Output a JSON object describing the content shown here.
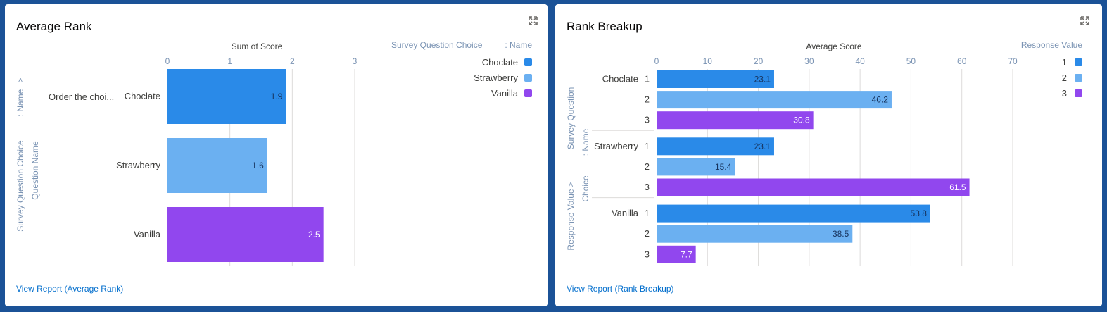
{
  "colors": {
    "series1": "#2a8ae8",
    "series2": "#6bb0f1",
    "series3": "#9147ee",
    "axis_text": "#7a93b3",
    "label_text": "#3e3e3c",
    "grid": "#dddbda",
    "link": "#006dcc"
  },
  "card1": {
    "title": "Average Rank",
    "expand_icon": "expand-icon",
    "link": "View Report (Average Rank)"
  },
  "card2": {
    "title": "Rank Breakup",
    "expand_icon": "expand-icon",
    "link": "View Report (Rank Breakup)"
  },
  "chart_data": [
    {
      "type": "bar",
      "orientation": "horizontal",
      "title": "Sum of Score",
      "xlabel": "Sum of Score",
      "ylabel_outer": "Survey Question Choice",
      "ylabel_outer_suffix": ": Name",
      "ylabel_outer_arrow": ">",
      "ylabel_inner": "Question Name",
      "group_label": "Order the choi...",
      "xlim": [
        0,
        3
      ],
      "xticks": [
        "0",
        "1",
        "2",
        "3"
      ],
      "categories": [
        "Choclate",
        "Strawberry",
        "Vanilla"
      ],
      "values": [
        1.9,
        1.6,
        2.5
      ],
      "value_labels": [
        "1.9",
        "1.6",
        "2.5"
      ],
      "legend": {
        "title": "Survey Question Choice",
        "title_suffix": ": Name",
        "position": "top-right",
        "entries": [
          "Choclate",
          "Strawberry",
          "Vanilla"
        ]
      },
      "grid": true
    },
    {
      "type": "bar",
      "orientation": "horizontal",
      "title": "Average Score",
      "xlabel": "Average Score",
      "ylabel_outer": "Response Value",
      "ylabel_outer_arrow": ">",
      "ylabel_outer_suffix": "Survey Question",
      "ylabel_inner": "Choice",
      "ylabel_inner_suffix": ": Name",
      "xlim": [
        0,
        70
      ],
      "xticks": [
        "0",
        "10",
        "20",
        "30",
        "40",
        "50",
        "60",
        "70"
      ],
      "groups": [
        "Choclate",
        "Strawberry",
        "Vanilla"
      ],
      "sub_categories": [
        "1",
        "2",
        "3"
      ],
      "series": [
        {
          "group": "Choclate",
          "values": [
            23.1,
            46.2,
            30.8
          ],
          "value_labels": [
            "23.1",
            "46.2",
            "30.8"
          ]
        },
        {
          "group": "Strawberry",
          "values": [
            23.1,
            15.4,
            61.5
          ],
          "value_labels": [
            "23.1",
            "15.4",
            "61.5"
          ]
        },
        {
          "group": "Vanilla",
          "values": [
            53.8,
            38.5,
            7.7
          ],
          "value_labels": [
            "53.8",
            "38.5",
            "7.7"
          ]
        }
      ],
      "legend": {
        "title": "Response Value",
        "position": "top-right",
        "entries": [
          "1",
          "2",
          "3"
        ]
      },
      "grid": true
    }
  ]
}
